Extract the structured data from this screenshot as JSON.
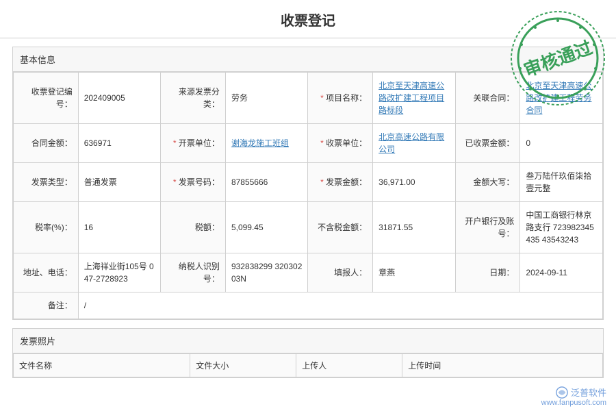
{
  "title": "收票登记",
  "stamp": {
    "text": "审核通过",
    "border_color": "#3aa05a",
    "text_color": "#3aa05a"
  },
  "section_basic": {
    "header": "基本信息",
    "rows": [
      [
        {
          "label": "收票登记编号：",
          "required": false,
          "value": "202409005",
          "link": false
        },
        {
          "label": "来源发票分类：",
          "required": false,
          "value": "劳务",
          "link": false
        },
        {
          "label": "项目名称：",
          "required": true,
          "value": "北京至天津高速公路改扩建工程项目路标段",
          "link": true
        },
        {
          "label": "关联合同：",
          "required": false,
          "value": "北京至天津高速公路改扩建工程劳务合同",
          "link": true
        }
      ],
      [
        {
          "label": "合同金额：",
          "required": false,
          "value": "636971",
          "link": false
        },
        {
          "label": "开票单位：",
          "required": true,
          "value": "谢海龙施工班组",
          "link": true
        },
        {
          "label": "收票单位：",
          "required": true,
          "value": "北京高速公路有限公司",
          "link": true
        },
        {
          "label": "已收票金额：",
          "required": false,
          "value": "0",
          "link": false
        }
      ],
      [
        {
          "label": "发票类型：",
          "required": false,
          "value": "普通发票",
          "link": false
        },
        {
          "label": "发票号码：",
          "required": true,
          "value": "87855666",
          "link": false
        },
        {
          "label": "发票金额：",
          "required": true,
          "value": "36,971.00",
          "link": false
        },
        {
          "label": "金额大写：",
          "required": false,
          "value": "叁万陆仟玖佰柒拾壹元整",
          "link": false
        }
      ],
      [
        {
          "label": "税率(%)：",
          "required": false,
          "value": "16",
          "link": false
        },
        {
          "label": "税额：",
          "required": false,
          "value": "5,099.45",
          "link": false
        },
        {
          "label": "不含税金额：",
          "required": false,
          "value": "31871.55",
          "link": false
        },
        {
          "label": "开户银行及账号：",
          "required": false,
          "value": "中国工商银行林京路支行 723982345435 43543243",
          "link": false
        }
      ],
      [
        {
          "label": "地址、电话：",
          "required": false,
          "value": "上海祥业街105号 047-2728923",
          "link": false
        },
        {
          "label": "纳税人识别号：",
          "required": false,
          "value": "932838299 32030203N",
          "link": false
        },
        {
          "label": "填报人：",
          "required": false,
          "value": "章燕",
          "link": false
        },
        {
          "label": "日期：",
          "required": false,
          "value": "2024-09-11",
          "link": false
        }
      ]
    ],
    "remark_label": "备注：",
    "remark_value": "/"
  },
  "section_files": {
    "header": "发票照片",
    "columns": [
      "文件名称",
      "文件大小",
      "上传人",
      "上传时间"
    ]
  },
  "watermark": {
    "brand": "泛普软件",
    "url": "www.fanpusoft.com",
    "color": "#5b8fd6"
  }
}
